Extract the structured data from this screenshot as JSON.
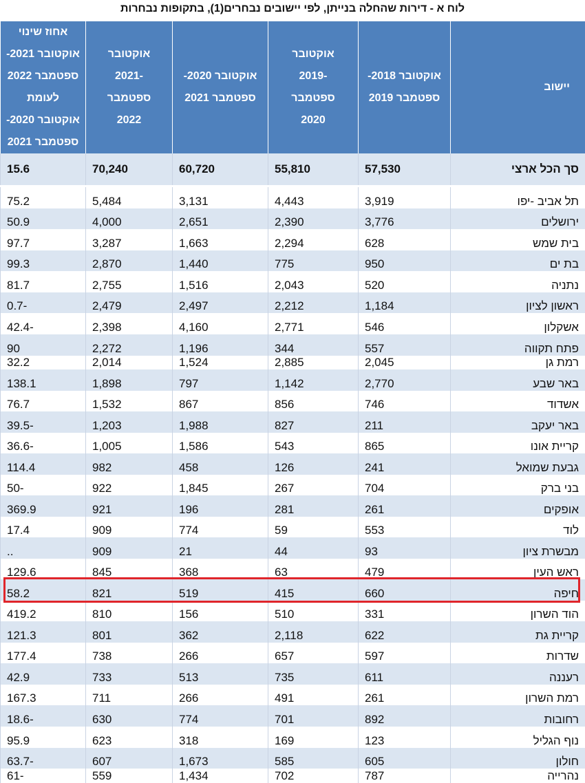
{
  "title": "לוח א - דירות שהחלה בנייתן, לפי יישובים נבחרים(1), בתקופות נבחרות",
  "headers": {
    "settlement": "יישוב",
    "p1": "אוקטובר 2018-\nספטמבר 2019",
    "p2": "אוקטובר\n-2019\nספטמבר\n2020",
    "p3": "אוקטובר 2020-\nספטמבר 2021",
    "p4": "אוקטובר\n-2021\nספטמבר\n2022",
    "pct": "אחוז שינוי\nאוקטובר 2021-\nספטמבר 2022 לעומת\nאוקטובר 2020-\nספטמבר 2021"
  },
  "total": {
    "name": "סך הכל ארצי",
    "p1": "57,530",
    "p2": "55,810",
    "p3": "60,720",
    "p4": "70,240",
    "pct": "15.6"
  },
  "highlight_row": "חיפה",
  "rows": [
    {
      "name": "תל אביב -יפו",
      "p1": "3,919",
      "p2": "4,443",
      "p3": "3,131",
      "p4": "5,484",
      "pct": "75.2"
    },
    {
      "name": "ירושלים",
      "p1": "3,776",
      "p2": "2,390",
      "p3": "2,651",
      "p4": "4,000",
      "pct": "50.9"
    },
    {
      "name": "בית שמש",
      "p1": "628",
      "p2": "2,294",
      "p3": "1,663",
      "p4": "3,287",
      "pct": "97.7"
    },
    {
      "name": "בת ים",
      "p1": "950",
      "p2": "775",
      "p3": "1,440",
      "p4": "2,870",
      "pct": "99.3"
    },
    {
      "name": "נתניה",
      "p1": "520",
      "p2": "2,043",
      "p3": "1,516",
      "p4": "2,755",
      "pct": "81.7"
    },
    {
      "name": "ראשון לציון",
      "p1": "1,184",
      "p2": "2,212",
      "p3": "2,497",
      "p4": "2,479",
      "pct": "-0.7"
    },
    {
      "name": "אשקלון",
      "p1": "546",
      "p2": "2,771",
      "p3": "4,160",
      "p4": "2,398",
      "pct": "-42.4"
    },
    {
      "name": "פתח תקווה",
      "p1": "557",
      "p2": "344",
      "p3": "1,196",
      "p4": "2,272",
      "pct": "90"
    },
    {
      "name": "רמת גן",
      "p1": "2,045",
      "p2": "2,885",
      "p3": "1,524",
      "p4": "2,014",
      "pct": "32.2"
    },
    {
      "name": "באר שבע",
      "p1": "2,770",
      "p2": "1,142",
      "p3": "797",
      "p4": "1,898",
      "pct": "138.1"
    },
    {
      "name": "אשדוד",
      "p1": "746",
      "p2": "856",
      "p3": "867",
      "p4": "1,532",
      "pct": "76.7"
    },
    {
      "name": "באר יעקב",
      "p1": "211",
      "p2": "827",
      "p3": "1,988",
      "p4": "1,203",
      "pct": "-39.5"
    },
    {
      "name": "קריית אונו",
      "p1": "865",
      "p2": "543",
      "p3": "1,586",
      "p4": "1,005",
      "pct": "-36.6"
    },
    {
      "name": "גבעת שמואל",
      "p1": "241",
      "p2": "126",
      "p3": "458",
      "p4": "982",
      "pct": "114.4"
    },
    {
      "name": "בני ברק",
      "p1": "704",
      "p2": "267",
      "p3": "1,845",
      "p4": "922",
      "pct": "-50"
    },
    {
      "name": "אופקים",
      "p1": "261",
      "p2": "281",
      "p3": "196",
      "p4": "921",
      "pct": "369.9"
    },
    {
      "name": "לוד",
      "p1": "553",
      "p2": "59",
      "p3": "774",
      "p4": "909",
      "pct": "17.4"
    },
    {
      "name": "מבשרת ציון",
      "p1": "93",
      "p2": "44",
      "p3": "21",
      "p4": "909",
      "pct": ".."
    },
    {
      "name": "ראש העין",
      "p1": "479",
      "p2": "63",
      "p3": "368",
      "p4": "845",
      "pct": "129.6"
    },
    {
      "name": "חיפה",
      "p1": "660",
      "p2": "415",
      "p3": "519",
      "p4": "821",
      "pct": "58.2"
    },
    {
      "name": "הוד השרון",
      "p1": "331",
      "p2": "510",
      "p3": "156",
      "p4": "810",
      "pct": "419.2"
    },
    {
      "name": "קריית גת",
      "p1": "622",
      "p2": "2,118",
      "p3": "362",
      "p4": "801",
      "pct": "121.3"
    },
    {
      "name": "שדרות",
      "p1": "597",
      "p2": "657",
      "p3": "266",
      "p4": "738",
      "pct": "177.4"
    },
    {
      "name": "רעננה",
      "p1": "611",
      "p2": "735",
      "p3": "513",
      "p4": "733",
      "pct": "42.9"
    },
    {
      "name": "רמת השרון",
      "p1": "261",
      "p2": "491",
      "p3": "266",
      "p4": "711",
      "pct": "167.3"
    },
    {
      "name": "רחובות",
      "p1": "892",
      "p2": "701",
      "p3": "774",
      "p4": "630",
      "pct": "-18.6"
    },
    {
      "name": "נוף הגליל",
      "p1": "123",
      "p2": "169",
      "p3": "318",
      "p4": "623",
      "pct": "95.9"
    },
    {
      "name": "חולון",
      "p1": "605",
      "p2": "585",
      "p3": "1,673",
      "p4": "607",
      "pct": "-63.7"
    },
    {
      "name": "נהרייה",
      "p1": "787",
      "p2": "702",
      "p3": "1,434",
      "p4": "559",
      "pct": "-61"
    }
  ]
}
